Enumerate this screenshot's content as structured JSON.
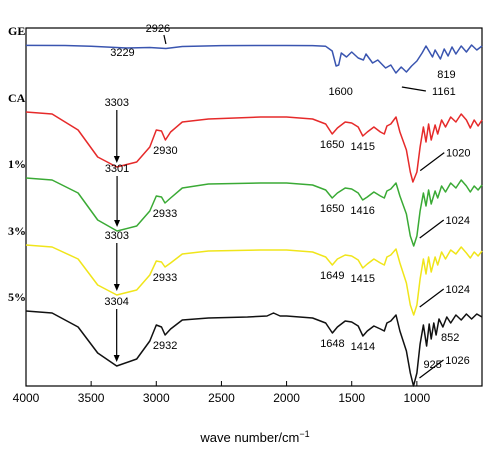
{
  "chart_data": {
    "type": "line",
    "title": "",
    "xlabel": "wave number/cm",
    "xlabel_superscript": "−1",
    "ylabel": "",
    "xlim": [
      4000,
      500
    ],
    "x_reversed": true,
    "y_ticks_shown": false,
    "grid": false,
    "x_tick_labels": [
      "4000",
      "3500",
      "3000",
      "2500",
      "2000",
      "1500",
      "1000"
    ],
    "series": [
      {
        "name": "GE",
        "color": "#3a55b0",
        "label_position": "left-above",
        "points": [
          [
            4000,
            0.4
          ],
          [
            3700,
            0.5
          ],
          [
            3500,
            1.2
          ],
          [
            3229,
            3
          ],
          [
            3050,
            2.5
          ],
          [
            2926,
            3.5
          ],
          [
            2800,
            1.5
          ],
          [
            2500,
            0.6
          ],
          [
            2200,
            0.5
          ],
          [
            2000,
            0.5
          ],
          [
            1800,
            0.6
          ],
          [
            1700,
            1.3
          ],
          [
            1650,
            6
          ],
          [
            1620,
            21
          ],
          [
            1600,
            20
          ],
          [
            1580,
            8
          ],
          [
            1540,
            12
          ],
          [
            1500,
            7
          ],
          [
            1450,
            13
          ],
          [
            1410,
            15
          ],
          [
            1390,
            9
          ],
          [
            1340,
            18
          ],
          [
            1300,
            15
          ],
          [
            1240,
            23
          ],
          [
            1200,
            20
          ],
          [
            1161,
            28
          ],
          [
            1120,
            22
          ],
          [
            1080,
            27
          ],
          [
            1040,
            21
          ],
          [
            1000,
            16
          ],
          [
            960,
            8
          ],
          [
            930,
            1
          ],
          [
            880,
            12
          ],
          [
            860,
            5
          ],
          [
            819,
            14
          ],
          [
            790,
            4
          ],
          [
            760,
            11
          ],
          [
            730,
            2
          ],
          [
            700,
            9
          ],
          [
            660,
            1
          ],
          [
            620,
            7
          ],
          [
            580,
            0
          ],
          [
            540,
            5
          ],
          [
            500,
            1
          ]
        ]
      },
      {
        "name": "CA",
        "color": "#e62a2a",
        "label_position": "left-above",
        "points": [
          [
            4000,
            0
          ],
          [
            3800,
            2
          ],
          [
            3600,
            18
          ],
          [
            3450,
            45
          ],
          [
            3303,
            55
          ],
          [
            3150,
            50
          ],
          [
            3050,
            35
          ],
          [
            3000,
            18
          ],
          [
            2960,
            19
          ],
          [
            2930,
            28
          ],
          [
            2890,
            20
          ],
          [
            2800,
            10
          ],
          [
            2600,
            7
          ],
          [
            2200,
            5
          ],
          [
            2000,
            5
          ],
          [
            1800,
            7
          ],
          [
            1700,
            12
          ],
          [
            1650,
            22
          ],
          [
            1610,
            16
          ],
          [
            1550,
            10
          ],
          [
            1500,
            11
          ],
          [
            1450,
            15
          ],
          [
            1415,
            24
          ],
          [
            1380,
            20
          ],
          [
            1330,
            15
          ],
          [
            1280,
            20
          ],
          [
            1250,
            22
          ],
          [
            1230,
            14
          ],
          [
            1200,
            12
          ],
          [
            1160,
            5
          ],
          [
            1130,
            20
          ],
          [
            1080,
            38
          ],
          [
            1050,
            60
          ],
          [
            1030,
            70
          ],
          [
            1000,
            60
          ],
          [
            975,
            35
          ],
          [
            950,
            15
          ],
          [
            930,
            30
          ],
          [
            910,
            12
          ],
          [
            890,
            28
          ],
          [
            860,
            13
          ],
          [
            840,
            22
          ],
          [
            810,
            8
          ],
          [
            780,
            15
          ],
          [
            740,
            5
          ],
          [
            700,
            10
          ],
          [
            660,
            2
          ],
          [
            620,
            8
          ],
          [
            590,
            16
          ],
          [
            560,
            8
          ],
          [
            530,
            14
          ],
          [
            500,
            8
          ]
        ]
      },
      {
        "name": "1%",
        "color": "#3aaa35",
        "label_position": "left-above",
        "points": [
          [
            4000,
            0
          ],
          [
            3800,
            2
          ],
          [
            3600,
            15
          ],
          [
            3450,
            42
          ],
          [
            3301,
            53
          ],
          [
            3150,
            48
          ],
          [
            3050,
            33
          ],
          [
            3000,
            18
          ],
          [
            2960,
            19
          ],
          [
            2933,
            25
          ],
          [
            2890,
            20
          ],
          [
            2800,
            10
          ],
          [
            2600,
            6
          ],
          [
            2200,
            5
          ],
          [
            2000,
            5
          ],
          [
            1800,
            7
          ],
          [
            1700,
            12
          ],
          [
            1650,
            20
          ],
          [
            1610,
            15
          ],
          [
            1550,
            10
          ],
          [
            1500,
            11
          ],
          [
            1450,
            15
          ],
          [
            1416,
            22
          ],
          [
            1380,
            19
          ],
          [
            1330,
            14
          ],
          [
            1280,
            18
          ],
          [
            1250,
            20
          ],
          [
            1230,
            13
          ],
          [
            1200,
            11
          ],
          [
            1160,
            5
          ],
          [
            1130,
            18
          ],
          [
            1080,
            36
          ],
          [
            1050,
            58
          ],
          [
            1024,
            68
          ],
          [
            1000,
            58
          ],
          [
            975,
            33
          ],
          [
            950,
            15
          ],
          [
            930,
            28
          ],
          [
            910,
            12
          ],
          [
            890,
            26
          ],
          [
            860,
            13
          ],
          [
            840,
            20
          ],
          [
            810,
            8
          ],
          [
            780,
            14
          ],
          [
            740,
            5
          ],
          [
            700,
            10
          ],
          [
            660,
            2
          ],
          [
            620,
            8
          ],
          [
            590,
            14
          ],
          [
            560,
            8
          ],
          [
            530,
            12
          ],
          [
            500,
            7
          ]
        ]
      },
      {
        "name": "3%",
        "color": "#f0e51a",
        "label_position": "left-above",
        "points": [
          [
            4000,
            0
          ],
          [
            3800,
            2
          ],
          [
            3600,
            14
          ],
          [
            3450,
            40
          ],
          [
            3303,
            50
          ],
          [
            3150,
            45
          ],
          [
            3050,
            30
          ],
          [
            3000,
            16
          ],
          [
            2960,
            17
          ],
          [
            2933,
            22
          ],
          [
            2890,
            18
          ],
          [
            2800,
            9
          ],
          [
            2600,
            6
          ],
          [
            2200,
            5
          ],
          [
            2000,
            5
          ],
          [
            1800,
            7
          ],
          [
            1700,
            12
          ],
          [
            1649,
            20
          ],
          [
            1610,
            14
          ],
          [
            1550,
            10
          ],
          [
            1500,
            11
          ],
          [
            1450,
            15
          ],
          [
            1415,
            23
          ],
          [
            1380,
            19
          ],
          [
            1330,
            14
          ],
          [
            1280,
            18
          ],
          [
            1250,
            20
          ],
          [
            1230,
            12
          ],
          [
            1200,
            10
          ],
          [
            1160,
            4
          ],
          [
            1130,
            18
          ],
          [
            1080,
            38
          ],
          [
            1050,
            60
          ],
          [
            1024,
            70
          ],
          [
            1000,
            60
          ],
          [
            975,
            34
          ],
          [
            950,
            14
          ],
          [
            930,
            29
          ],
          [
            910,
            12
          ],
          [
            890,
            27
          ],
          [
            860,
            12
          ],
          [
            840,
            20
          ],
          [
            810,
            7
          ],
          [
            780,
            14
          ],
          [
            740,
            5
          ],
          [
            700,
            9
          ],
          [
            660,
            2
          ],
          [
            620,
            8
          ],
          [
            590,
            13
          ],
          [
            560,
            7
          ],
          [
            530,
            11
          ],
          [
            500,
            6
          ]
        ]
      },
      {
        "name": "5%",
        "color": "#111111",
        "label_position": "left-above",
        "points": [
          [
            4000,
            0
          ],
          [
            3800,
            2
          ],
          [
            3600,
            16
          ],
          [
            3450,
            42
          ],
          [
            3304,
            55
          ],
          [
            3150,
            48
          ],
          [
            3050,
            30
          ],
          [
            3000,
            14
          ],
          [
            2960,
            16
          ],
          [
            2932,
            24
          ],
          [
            2890,
            18
          ],
          [
            2800,
            9
          ],
          [
            2600,
            7
          ],
          [
            2300,
            6
          ],
          [
            2150,
            5
          ],
          [
            2100,
            2
          ],
          [
            2050,
            5
          ],
          [
            2000,
            5
          ],
          [
            1800,
            7
          ],
          [
            1700,
            12
          ],
          [
            1648,
            22
          ],
          [
            1610,
            16
          ],
          [
            1550,
            10
          ],
          [
            1500,
            11
          ],
          [
            1450,
            15
          ],
          [
            1414,
            25
          ],
          [
            1380,
            20
          ],
          [
            1330,
            15
          ],
          [
            1280,
            18
          ],
          [
            1250,
            20
          ],
          [
            1230,
            12
          ],
          [
            1200,
            10
          ],
          [
            1160,
            4
          ],
          [
            1130,
            20
          ],
          [
            1080,
            40
          ],
          [
            1050,
            62
          ],
          [
            1026,
            75
          ],
          [
            1000,
            62
          ],
          [
            975,
            33
          ],
          [
            950,
            14
          ],
          [
            925,
            35
          ],
          [
            905,
            13
          ],
          [
            890,
            28
          ],
          [
            870,
            12
          ],
          [
            852,
            24
          ],
          [
            830,
            8
          ],
          [
            800,
            16
          ],
          [
            770,
            6
          ],
          [
            740,
            12
          ],
          [
            700,
            4
          ],
          [
            660,
            9
          ],
          [
            620,
            3
          ],
          [
            580,
            8
          ],
          [
            540,
            3
          ],
          [
            500,
            6
          ]
        ]
      }
    ],
    "annotations": [
      {
        "series": "GE",
        "text": "3229",
        "x": 3229,
        "arrow": false
      },
      {
        "series": "GE",
        "text": "2926",
        "x": 2926,
        "arrow": true
      },
      {
        "series": "GE",
        "text": "1600",
        "x": 1600,
        "arrow": false
      },
      {
        "series": "GE",
        "text": "1161",
        "x": 1161,
        "arrow": true
      },
      {
        "series": "GE",
        "text": "819",
        "x": 819,
        "arrow": false
      },
      {
        "series": "CA",
        "text": "3303",
        "x": 3303,
        "arrow": true
      },
      {
        "series": "CA",
        "text": "2930",
        "x": 2930,
        "arrow": false
      },
      {
        "series": "CA",
        "text": "1650",
        "x": 1650,
        "arrow": false
      },
      {
        "series": "CA",
        "text": "1415",
        "x": 1415,
        "arrow": false
      },
      {
        "series": "CA",
        "text": "1020",
        "x": 1020,
        "arrow": true
      },
      {
        "series": "1%",
        "text": "3301",
        "x": 3301,
        "arrow": true
      },
      {
        "series": "1%",
        "text": "2933",
        "x": 2933,
        "arrow": false
      },
      {
        "series": "1%",
        "text": "1650",
        "x": 1650,
        "arrow": false
      },
      {
        "series": "1%",
        "text": "1416",
        "x": 1416,
        "arrow": false
      },
      {
        "series": "1%",
        "text": "1024",
        "x": 1024,
        "arrow": true
      },
      {
        "series": "3%",
        "text": "3303",
        "x": 3303,
        "arrow": true
      },
      {
        "series": "3%",
        "text": "2933",
        "x": 2933,
        "arrow": false
      },
      {
        "series": "3%",
        "text": "1649",
        "x": 1649,
        "arrow": false
      },
      {
        "series": "3%",
        "text": "1415",
        "x": 1415,
        "arrow": false
      },
      {
        "series": "3%",
        "text": "1024",
        "x": 1024,
        "arrow": true
      },
      {
        "series": "5%",
        "text": "3304",
        "x": 3304,
        "arrow": true
      },
      {
        "series": "5%",
        "text": "2932",
        "x": 2932,
        "arrow": false
      },
      {
        "series": "5%",
        "text": "1648",
        "x": 1648,
        "arrow": false
      },
      {
        "series": "5%",
        "text": "1414",
        "x": 1414,
        "arrow": false
      },
      {
        "series": "5%",
        "text": "925",
        "x": 925,
        "arrow": false
      },
      {
        "series": "5%",
        "text": "852",
        "x": 852,
        "arrow": false
      },
      {
        "series": "5%",
        "text": "1026",
        "x": 1026,
        "arrow": true
      }
    ]
  }
}
